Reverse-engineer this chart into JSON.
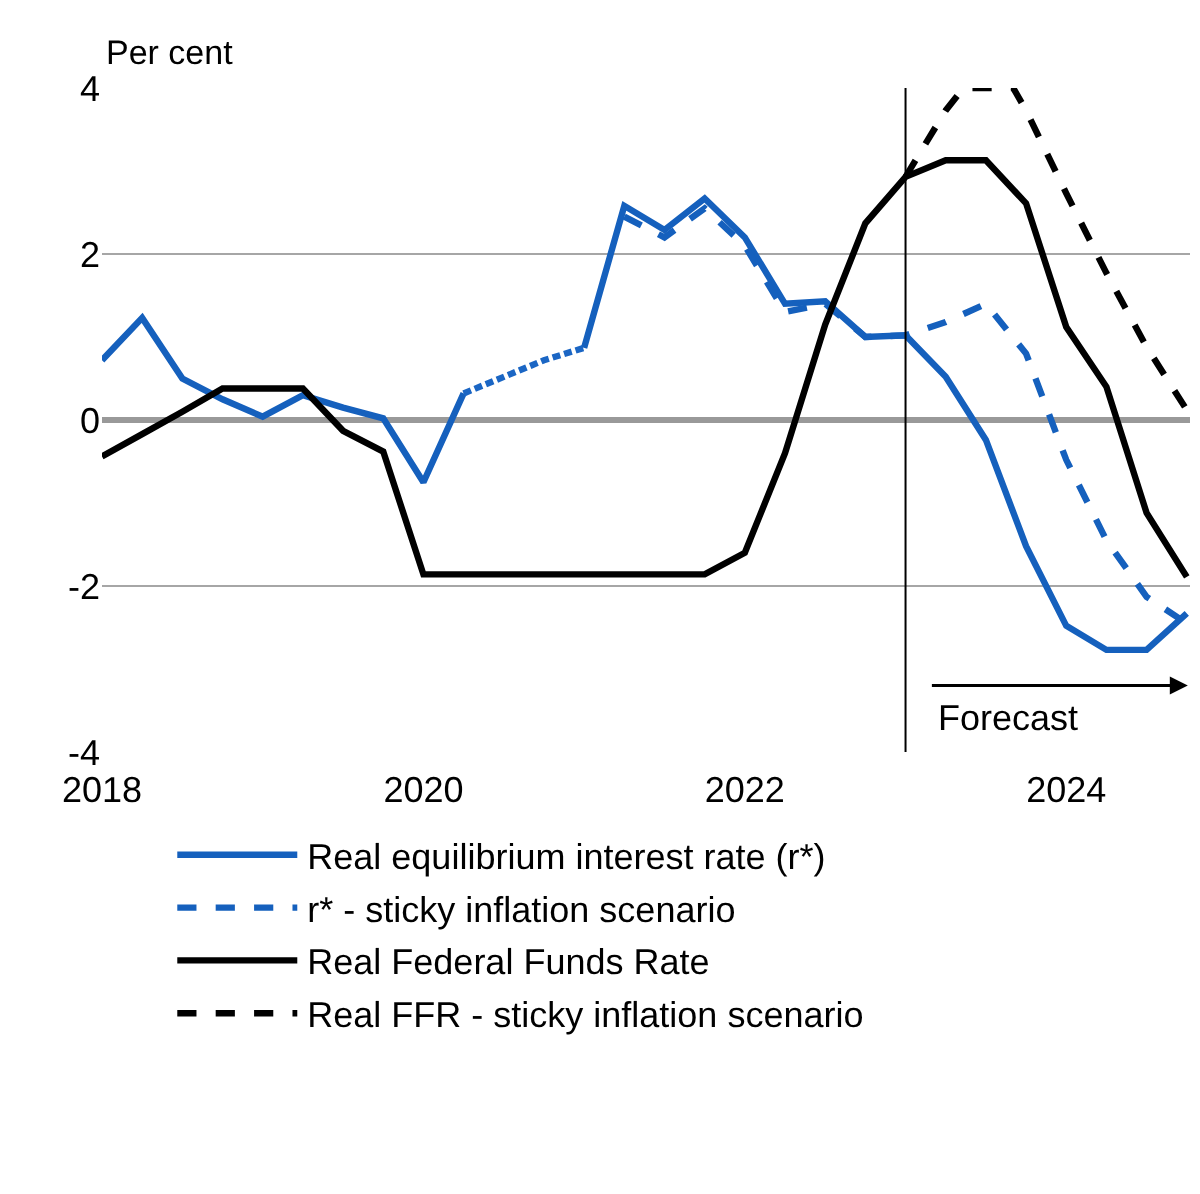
{
  "chart_data": {
    "type": "line",
    "ylabel": "Per cent",
    "x": [
      2018,
      2018.25,
      2018.5,
      2018.75,
      2019,
      2019.25,
      2019.5,
      2019.75,
      2020,
      2020.25,
      2020.5,
      2020.75,
      2021,
      2021.25,
      2021.5,
      2021.75,
      2022,
      2022.25,
      2022.5,
      2022.75,
      2023,
      2023.25,
      2023.5,
      2023.75,
      2024,
      2024.25,
      2024.5,
      2024.75
    ],
    "series": [
      {
        "name": "Real equilibrium interest rate (r*)",
        "color": "#1560bd",
        "line_style": "solid",
        "values": [
          0.72,
          1.23,
          0.5,
          0.25,
          0.04,
          0.3,
          0.15,
          0.02,
          -0.75,
          0.32,
          null,
          null,
          0.87,
          2.58,
          2.29,
          2.67,
          2.2,
          1.4,
          1.43,
          1.0,
          1.02,
          0.52,
          -0.24,
          -1.52,
          -2.48,
          -2.77,
          -2.77,
          -2.33
        ]
      },
      {
        "name": "r* - sticky inflation scenario",
        "color": "#1560bd",
        "line_style": "dashed",
        "values": [
          null,
          null,
          null,
          null,
          null,
          null,
          null,
          null,
          null,
          null,
          null,
          null,
          null,
          2.45,
          2.2,
          2.55,
          2.1,
          1.3,
          1.4,
          1.0,
          1.02,
          1.18,
          1.4,
          0.8,
          -0.48,
          -1.45,
          -2.13,
          -2.45
        ]
      },
      {
        "name": "Real Federal Funds Rate",
        "color": "#000000",
        "line_style": "solid",
        "values": [
          -0.44,
          -0.17,
          0.1,
          0.38,
          0.38,
          0.38,
          -0.13,
          -0.38,
          -1.86,
          -1.86,
          -1.86,
          -1.86,
          -1.86,
          -1.86,
          -1.86,
          -1.86,
          -1.6,
          -0.4,
          1.15,
          2.37,
          2.93,
          3.13,
          3.13,
          2.61,
          1.12,
          0.4,
          -1.12,
          -1.89
        ]
      },
      {
        "name": "Real FFR - sticky inflation scenario",
        "color": "#000000",
        "line_style": "dashed",
        "x": [
          2023,
          2023.25,
          2023.36,
          2023.67,
          2023.75,
          2024,
          2024.25,
          2024.5,
          2024.75
        ],
        "values": [
          2.93,
          3.73,
          4,
          4,
          3.73,
          2.73,
          1.77,
          0.88,
          0.12
        ]
      },
      {
        "color": "#1b66c4",
        "line_style": "dotted",
        "x": [
          2020.25,
          2020.5,
          2020.75,
          2021
        ],
        "values": [
          0.32,
          0.52,
          0.72,
          0.87
        ]
      }
    ],
    "xlim": [
      2018,
      2024.77
    ],
    "xticks": [
      2018,
      2020,
      2022,
      2024
    ],
    "ylim": [
      -4,
      4
    ],
    "yticks": [
      -4,
      -2,
      0,
      2,
      4
    ],
    "grid": "y",
    "legend": "bottom",
    "ref_lines": [
      {
        "axis": "x",
        "value": 2023,
        "color": "#000000"
      }
    ],
    "annotations": [
      "Forecast"
    ]
  }
}
